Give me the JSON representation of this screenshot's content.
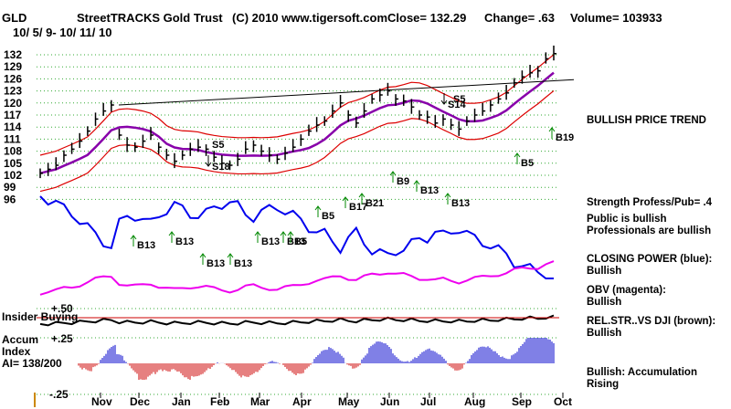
{
  "header": {
    "symbol": "GLD",
    "date_range": "10/ 5/ 9- 10/ 11/ 10",
    "title": "StreetTRACKS Gold Trust",
    "copyright": "(C) 2010 www.tigersoft.com",
    "close": "Close= 132.29",
    "change": "Change= .63",
    "volume": "Volume= 103933"
  },
  "colors": {
    "price": "#000000",
    "bands": "#dd0000",
    "ma": "#8800aa",
    "closing_power": "#0000ee",
    "obv": "#ee00ee",
    "relstr": "#663300",
    "accum": "#0000cc",
    "accum_neg": "#cc0000",
    "grid": "#33aa33",
    "buy_arrow": "#008800",
    "sell_arrow": "#000000"
  },
  "sidebar": {
    "trend": "BULLISH PRICE TREND",
    "strength": "Strength Profess/Pub= .4",
    "public": "Public is bullish\nProfessionals are bullish",
    "closing_power": "CLOSING POWER (blue):\nBullish",
    "obv": "OBV (magenta):\nBullish",
    "relstr": "REL.STR..VS DJI (brown):\nBullish",
    "accum": "Bullish: Accumulation Rising"
  },
  "panel_labels": {
    "insider": "Insider Buying",
    "accum": "Accum\nIndex\nAI= 138/200",
    "p50": "+.50",
    "p25": "+.25",
    "m25": "-.25"
  },
  "chart_data": {
    "type": "line",
    "y_ticks": [
      132,
      129,
      126,
      123,
      120,
      117,
      114,
      111,
      108,
      105,
      102,
      99,
      96
    ],
    "x_ticks": [
      "Nov",
      "Dec",
      "Jan",
      "Feb",
      "Mar",
      "Apr",
      "May",
      "Jun",
      "Jul",
      "Aug",
      "Sep",
      "Oct"
    ],
    "price_closes": [
      102.5,
      103.5,
      104.5,
      107,
      108.5,
      110.5,
      113,
      116,
      118,
      119.5,
      112,
      109.5,
      109,
      110.5,
      112,
      109,
      107,
      105.5,
      107,
      108.5,
      109,
      108.5,
      106.5,
      105,
      104.5,
      106,
      108.5,
      109.5,
      108,
      107,
      106,
      107.5,
      109,
      111,
      113,
      114.5,
      115.5,
      118,
      120,
      117,
      115,
      118,
      121,
      122,
      123,
      121,
      120.5,
      119,
      117,
      116.5,
      115,
      116,
      114.5,
      113.5,
      115.5,
      117,
      118,
      119.5,
      121,
      122.5,
      125,
      126.5,
      127.5,
      128,
      131,
      132.29
    ],
    "signals": [
      {
        "label": "S5",
        "big": true
      },
      {
        "label": "S18"
      },
      {
        "label": "S5",
        "big": true
      },
      {
        "label": "S14"
      },
      {
        "label": "B19"
      },
      {
        "label": "B5"
      },
      {
        "label": "B13"
      },
      {
        "label": "B13"
      },
      {
        "label": "B13"
      },
      {
        "label": "B13"
      },
      {
        "label": "B13"
      },
      {
        "label": "B13"
      },
      {
        "label": "B5"
      },
      {
        "label": "B5"
      },
      {
        "label": "B17"
      },
      {
        "label": "B21"
      },
      {
        "label": "B9"
      },
      {
        "label": "B13"
      },
      {
        "label": "B13"
      }
    ]
  }
}
